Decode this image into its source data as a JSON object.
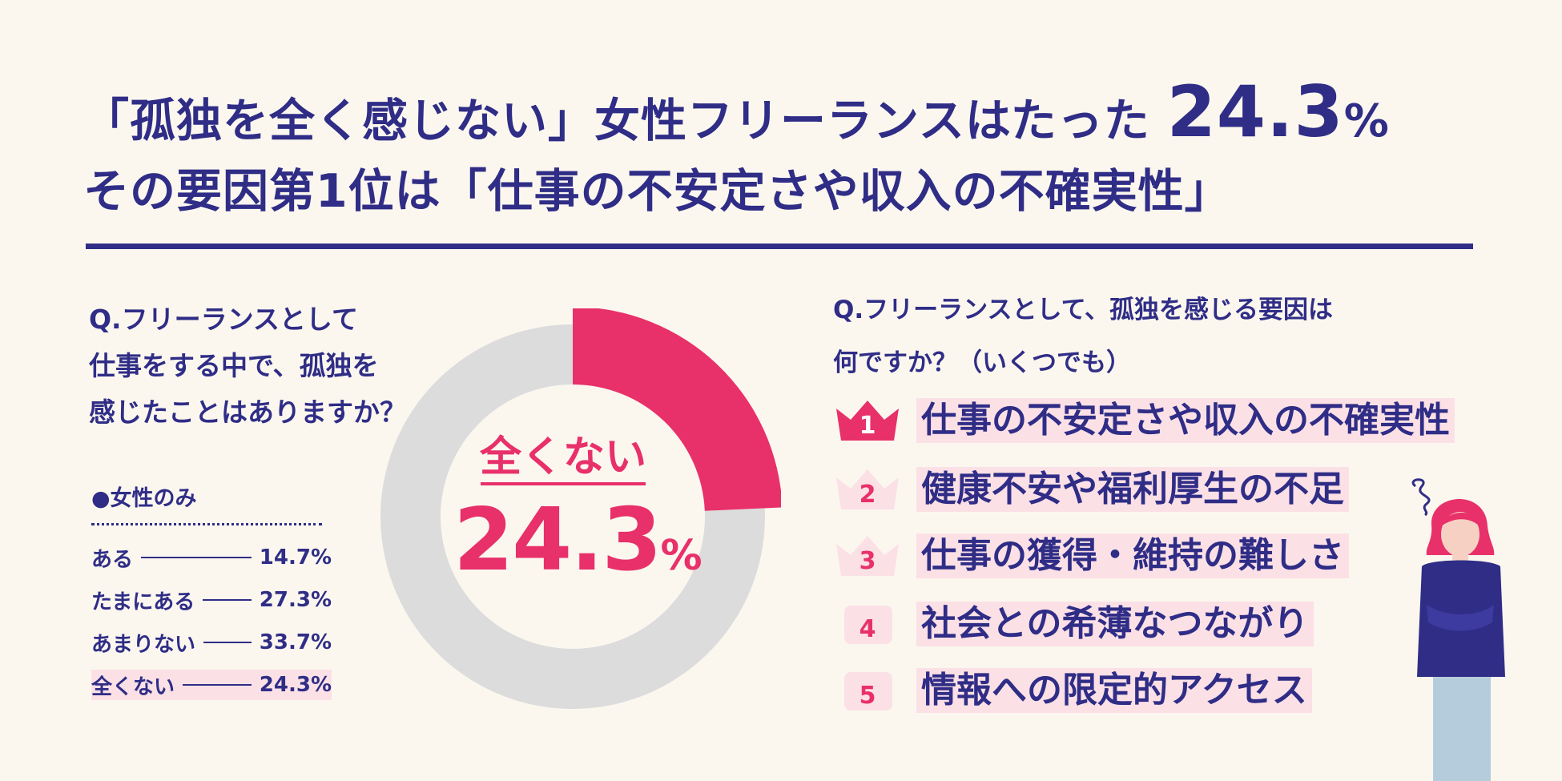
{
  "headline": {
    "line1_text": "「孤独を全く感じない」女性フリーランスはたった",
    "line1_number": "24.3",
    "line1_unit": "%",
    "line2": "その要因第1位は「仕事の不安定さや収入の不確実性」"
  },
  "question_left": {
    "line1": "Q.フリーランスとして",
    "line2": "仕事をする中で、孤独を",
    "line3": "感じたことはありますか？"
  },
  "legend": {
    "heading": "●女性のみ",
    "rows": [
      {
        "label": "ある",
        "value": "14.7%"
      },
      {
        "label": "たまにある",
        "value": "27.3%"
      },
      {
        "label": "あまりない",
        "value": "33.7%"
      },
      {
        "label": "全くない",
        "value": "24.3%"
      }
    ]
  },
  "donut_center": {
    "label": "全くない",
    "value": "24.3",
    "unit": "%"
  },
  "question_right": {
    "line1": "Q.フリーランスとして、孤独を感じる要因は",
    "line2": "何ですか？（いくつでも）"
  },
  "ranking": [
    {
      "rank": "1",
      "label": "仕事の不安定さや収入の不確実性"
    },
    {
      "rank": "2",
      "label": "健康不安や福利厚生の不足"
    },
    {
      "rank": "3",
      "label": "仕事の獲得・維持の難しさ"
    },
    {
      "rank": "4",
      "label": "社会との希薄なつながり"
    },
    {
      "rank": "5",
      "label": "情報への限定的アクセス"
    }
  ],
  "colors": {
    "navy": "#2f2d86",
    "pink": "#e8306a",
    "light_pink": "#fbe0e6",
    "grey": "#dcdcdc",
    "background": "#fbf7ef"
  },
  "chart_data": {
    "type": "pie",
    "categories": [
      "ある",
      "たまにある",
      "あまりない",
      "全くない"
    ],
    "values": [
      14.7,
      27.3,
      33.7,
      24.3
    ],
    "highlighted": "全くない"
  }
}
